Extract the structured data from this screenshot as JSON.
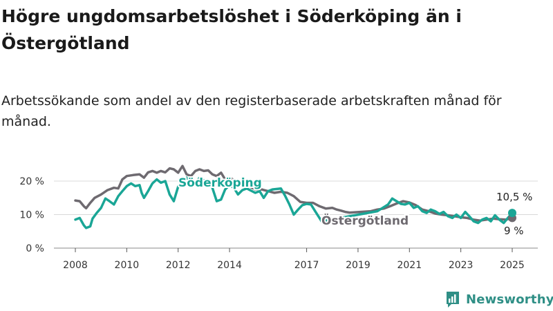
{
  "title": "Högre ungdomsarbetslöshet i Söderköping än i Östergötland",
  "subtitle": "Arbetssökande som andel av den registerbaserade arbetskraften månad för månad.",
  "brand": {
    "name": "Newsworthy",
    "color": "#2f8f86",
    "icon": "bar-chart-logo-icon"
  },
  "chart_data": {
    "type": "line",
    "ylim": [
      0,
      24
    ],
    "xlim": [
      2007.6,
      2025.5
    ],
    "y_ticks": [
      {
        "value": 0,
        "label": "0 %"
      },
      {
        "value": 10,
        "label": "10 %"
      },
      {
        "value": 20,
        "label": "20 %"
      }
    ],
    "x_ticks": [
      {
        "value": 2008,
        "label": "2008"
      },
      {
        "value": 2010,
        "label": "2010"
      },
      {
        "value": 2012,
        "label": "2012"
      },
      {
        "value": 2014,
        "label": "2014"
      },
      {
        "value": 2017,
        "label": "2017"
      },
      {
        "value": 2019,
        "label": "2019"
      },
      {
        "value": 2021,
        "label": "2021"
      },
      {
        "value": 2023,
        "label": "2023"
      },
      {
        "value": 2025,
        "label": "2025"
      }
    ],
    "grid": true,
    "series": [
      {
        "name": "Östergötland",
        "color": "#6e6a70",
        "end_label": "9 %",
        "points": [
          [
            2008.0,
            14.2
          ],
          [
            2008.17,
            14.0
          ],
          [
            2008.33,
            12.5
          ],
          [
            2008.42,
            11.9
          ],
          [
            2008.58,
            13.5
          ],
          [
            2008.75,
            15.0
          ],
          [
            2009.0,
            16.0
          ],
          [
            2009.25,
            17.3
          ],
          [
            2009.5,
            18.0
          ],
          [
            2009.67,
            17.8
          ],
          [
            2009.83,
            20.5
          ],
          [
            2010.0,
            21.5
          ],
          [
            2010.25,
            21.8
          ],
          [
            2010.5,
            22.0
          ],
          [
            2010.67,
            21.0
          ],
          [
            2010.83,
            22.6
          ],
          [
            2011.0,
            23.0
          ],
          [
            2011.17,
            22.5
          ],
          [
            2011.33,
            23.0
          ],
          [
            2011.5,
            22.6
          ],
          [
            2011.67,
            23.8
          ],
          [
            2011.83,
            23.5
          ],
          [
            2012.0,
            22.5
          ],
          [
            2012.17,
            24.5
          ],
          [
            2012.33,
            22.0
          ],
          [
            2012.5,
            21.5
          ],
          [
            2012.67,
            23.0
          ],
          [
            2012.83,
            23.5
          ],
          [
            2013.0,
            23.0
          ],
          [
            2013.17,
            23.2
          ],
          [
            2013.33,
            22.0
          ],
          [
            2013.5,
            21.5
          ],
          [
            2013.67,
            22.5
          ],
          [
            2013.83,
            20.5
          ],
          [
            2014.0,
            21.0
          ],
          [
            2014.25,
            20.0
          ],
          [
            2014.5,
            18.8
          ],
          [
            2014.75,
            18.5
          ],
          [
            2015.0,
            17.5
          ],
          [
            2015.25,
            17.5
          ],
          [
            2015.5,
            17.0
          ],
          [
            2015.75,
            16.5
          ],
          [
            2016.0,
            16.8
          ],
          [
            2016.25,
            16.5
          ],
          [
            2016.5,
            15.5
          ],
          [
            2016.75,
            13.8
          ],
          [
            2017.0,
            13.5
          ],
          [
            2017.25,
            13.5
          ],
          [
            2017.5,
            12.5
          ],
          [
            2017.75,
            11.8
          ],
          [
            2018.0,
            12.0
          ],
          [
            2018.17,
            11.5
          ],
          [
            2018.33,
            11.2
          ],
          [
            2018.5,
            10.8
          ],
          [
            2018.67,
            10.6
          ],
          [
            2019.5,
            11.0
          ],
          [
            2019.75,
            11.5
          ],
          [
            2020.0,
            11.8
          ],
          [
            2020.25,
            12.5
          ],
          [
            2020.5,
            13.3
          ],
          [
            2020.75,
            14.0
          ],
          [
            2021.0,
            13.6
          ],
          [
            2021.25,
            12.8
          ],
          [
            2021.5,
            11.5
          ],
          [
            2021.75,
            11.0
          ],
          [
            2022.0,
            10.3
          ],
          [
            2022.25,
            10.0
          ],
          [
            2022.5,
            9.8
          ],
          [
            2022.75,
            9.5
          ],
          [
            2023.0,
            9.2
          ],
          [
            2023.25,
            9.0
          ],
          [
            2023.5,
            8.5
          ],
          [
            2023.75,
            8.2
          ],
          [
            2024.0,
            8.5
          ],
          [
            2024.25,
            8.8
          ],
          [
            2024.5,
            8.6
          ],
          [
            2024.75,
            8.5
          ],
          [
            2025.0,
            9.0
          ]
        ]
      },
      {
        "name": "Söderköping",
        "color": "#1aa696",
        "end_label": "10,5 %",
        "points": [
          [
            2008.0,
            8.5
          ],
          [
            2008.17,
            9.0
          ],
          [
            2008.33,
            6.8
          ],
          [
            2008.42,
            6.0
          ],
          [
            2008.58,
            6.5
          ],
          [
            2008.67,
            8.8
          ],
          [
            2008.83,
            10.5
          ],
          [
            2009.0,
            12.0
          ],
          [
            2009.17,
            14.8
          ],
          [
            2009.33,
            14.0
          ],
          [
            2009.5,
            13.0
          ],
          [
            2009.67,
            15.5
          ],
          [
            2009.83,
            17.0
          ],
          [
            2010.0,
            18.5
          ],
          [
            2010.17,
            19.3
          ],
          [
            2010.33,
            18.5
          ],
          [
            2010.5,
            18.8
          ],
          [
            2010.58,
            16.5
          ],
          [
            2010.67,
            15.0
          ],
          [
            2010.83,
            17.0
          ],
          [
            2011.0,
            19.3
          ],
          [
            2011.17,
            20.5
          ],
          [
            2011.33,
            19.5
          ],
          [
            2011.5,
            20.0
          ],
          [
            2011.67,
            16.0
          ],
          [
            2011.83,
            14.0
          ],
          [
            2012.0,
            18.3
          ],
          [
            2012.17,
            19.5
          ],
          [
            2012.33,
            21.0
          ],
          [
            2012.5,
            20.0
          ],
          [
            2012.67,
            19.2
          ],
          [
            2012.83,
            21.0
          ],
          [
            2013.0,
            20.2
          ],
          [
            2013.17,
            20.0
          ],
          [
            2013.33,
            18.0
          ],
          [
            2013.5,
            14.0
          ],
          [
            2013.67,
            14.5
          ],
          [
            2013.83,
            17.5
          ],
          [
            2014.0,
            18.8
          ],
          [
            2014.17,
            18.0
          ],
          [
            2014.33,
            16.0
          ],
          [
            2014.5,
            17.3
          ],
          [
            2014.67,
            17.8
          ],
          [
            2015.0,
            16.5
          ],
          [
            2015.17,
            17.0
          ],
          [
            2015.33,
            15.0
          ],
          [
            2015.5,
            17.0
          ],
          [
            2015.67,
            17.5
          ],
          [
            2016.0,
            17.8
          ],
          [
            2016.17,
            15.5
          ],
          [
            2016.33,
            13.0
          ],
          [
            2016.5,
            10.0
          ],
          [
            2016.67,
            11.5
          ],
          [
            2016.83,
            12.8
          ],
          [
            2017.0,
            13.2
          ],
          [
            2017.17,
            13.0
          ],
          [
            2017.33,
            11.0
          ],
          [
            2017.5,
            9.0
          ],
          [
            2017.58,
            8.0
          ],
          [
            2019.75,
            11.0
          ],
          [
            2020.0,
            12.2
          ],
          [
            2020.17,
            13.0
          ],
          [
            2020.33,
            14.8
          ],
          [
            2020.5,
            14.0
          ],
          [
            2020.67,
            13.2
          ],
          [
            2020.83,
            13.0
          ],
          [
            2021.0,
            13.5
          ],
          [
            2021.17,
            12.0
          ],
          [
            2021.33,
            12.5
          ],
          [
            2021.5,
            11.0
          ],
          [
            2021.67,
            10.5
          ],
          [
            2021.83,
            11.5
          ],
          [
            2022.0,
            11.0
          ],
          [
            2022.17,
            10.2
          ],
          [
            2022.33,
            10.8
          ],
          [
            2022.5,
            9.5
          ],
          [
            2022.67,
            9.0
          ],
          [
            2022.83,
            10.0
          ],
          [
            2023.0,
            9.0
          ],
          [
            2023.17,
            10.8
          ],
          [
            2023.33,
            9.5
          ],
          [
            2023.5,
            8.0
          ],
          [
            2023.67,
            7.5
          ],
          [
            2023.83,
            8.5
          ],
          [
            2024.0,
            9.0
          ],
          [
            2024.17,
            8.0
          ],
          [
            2024.33,
            9.8
          ],
          [
            2024.5,
            8.5
          ],
          [
            2024.67,
            7.5
          ],
          [
            2024.83,
            9.0
          ],
          [
            2025.0,
            10.5
          ]
        ]
      }
    ]
  }
}
